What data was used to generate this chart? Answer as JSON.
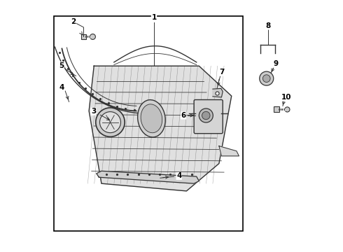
{
  "bg_color": "#ffffff",
  "border_color": "#000000",
  "line_color": "#333333",
  "label_color": "#000000"
}
